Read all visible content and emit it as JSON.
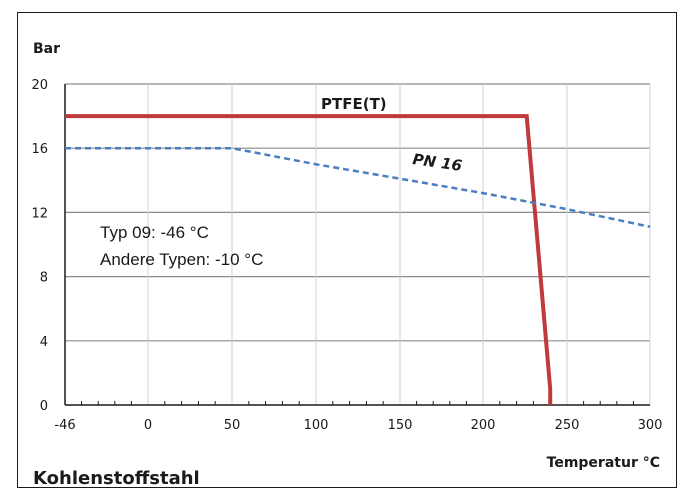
{
  "chart_data": {
    "type": "line",
    "ylabel": "Bar",
    "xlabel": "Temperatur °C",
    "footer": "Kohlenstoffstahl",
    "x_ticks": [
      -46,
      0,
      50,
      100,
      150,
      200,
      250,
      300
    ],
    "y_ticks": [
      0,
      4,
      8,
      12,
      16,
      20
    ],
    "xlim": [
      -46,
      300
    ],
    "ylim": [
      0,
      20
    ],
    "grid": true,
    "annotations": [
      "Typ 09: -46 °C",
      "Andere Typen: -10 °C"
    ],
    "series": [
      {
        "name": "PTFE(T)",
        "style": "solid",
        "color": "#c0393b",
        "x": [
          -46,
          226,
          240,
          240
        ],
        "y": [
          18,
          18,
          1,
          0
        ]
      },
      {
        "name": "PN 16",
        "style": "dashed",
        "color": "#4a7ec0",
        "x": [
          -46,
          50,
          100,
          150,
          200,
          250,
          300
        ],
        "y": [
          16,
          16,
          15,
          14.1,
          13.2,
          12.2,
          11.1
        ]
      }
    ]
  }
}
